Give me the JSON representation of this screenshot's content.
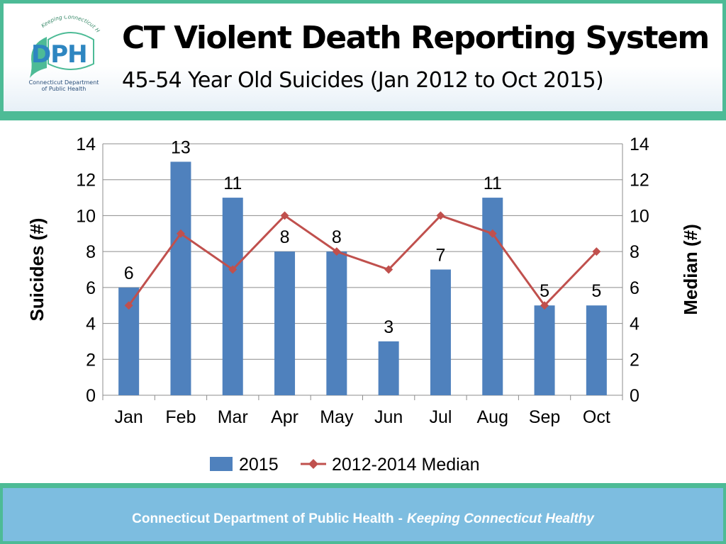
{
  "header": {
    "title": "CT Violent Death Reporting System",
    "subtitle": "45-54 Year Old Suicides (Jan 2012 to Oct 2015)"
  },
  "logo": {
    "letters": "DPH",
    "arc_text": "Keeping Connecticut Healthy",
    "caption_line1": "Connecticut Department",
    "caption_line2": "of Public Health"
  },
  "chart_data": {
    "type": "bar",
    "categories": [
      "Jan",
      "Feb",
      "Mar",
      "Apr",
      "May",
      "Jun",
      "Jul",
      "Aug",
      "Sep",
      "Oct"
    ],
    "series": [
      {
        "name": "2015",
        "type": "bar",
        "axis": "left",
        "color": "#4f81bd",
        "values": [
          6,
          13,
          11,
          8,
          8,
          3,
          7,
          11,
          5,
          5
        ]
      },
      {
        "name": "2012-2014 Median",
        "type": "line",
        "axis": "right",
        "color": "#c0504d",
        "marker": "diamond",
        "values": [
          5,
          9,
          7,
          10,
          8,
          7,
          10,
          9,
          5,
          8
        ]
      }
    ],
    "ylabel": "Suicides (#)",
    "y2label": "Median (#)",
    "ylim": [
      0,
      14
    ],
    "y2lim": [
      0,
      14
    ],
    "yticks": [
      0,
      2,
      4,
      6,
      8,
      10,
      12,
      14
    ],
    "grid": true,
    "legend": "bottom",
    "data_labels": "bar series"
  },
  "footer": {
    "org": "Connecticut Department of Public Health",
    "separator": "-",
    "tagline": "Keeping Connecticut Healthy"
  }
}
